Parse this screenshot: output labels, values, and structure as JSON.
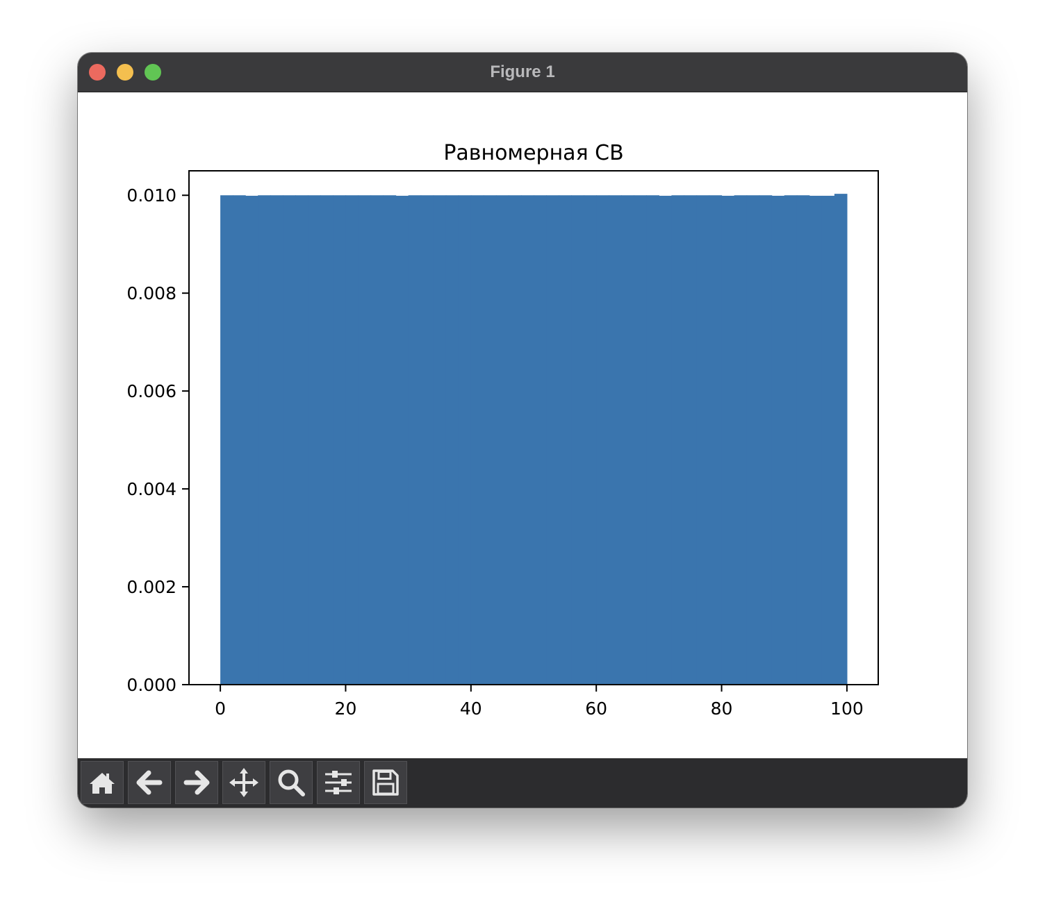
{
  "window": {
    "title": "Figure 1"
  },
  "toolbar": {
    "buttons": [
      {
        "icon": "home-icon",
        "name": "home-button"
      },
      {
        "icon": "back-arrow-icon",
        "name": "back-button"
      },
      {
        "icon": "forward-arrow-icon",
        "name": "forward-button"
      },
      {
        "icon": "move-icon",
        "name": "pan-button"
      },
      {
        "icon": "magnifier-icon",
        "name": "zoom-button"
      },
      {
        "icon": "sliders-icon",
        "name": "configure-subplots-button"
      },
      {
        "icon": "floppy-disk-icon",
        "name": "save-button"
      }
    ]
  },
  "chart_data": {
    "type": "bar",
    "title": "Равномерная СВ",
    "xlabel": "",
    "ylabel": "",
    "xlim": [
      -5,
      105
    ],
    "ylim": [
      0,
      0.0105
    ],
    "xticks": [
      0,
      20,
      40,
      60,
      80,
      100
    ],
    "xtick_labels": [
      "0",
      "20",
      "40",
      "60",
      "80",
      "100"
    ],
    "yticks": [
      0,
      0.002,
      0.004,
      0.006,
      0.008,
      0.01
    ],
    "ytick_labels": [
      "0.000",
      "0.002",
      "0.004",
      "0.006",
      "0.008",
      "0.010"
    ],
    "bin_edges": [
      0,
      100
    ],
    "bins": 50,
    "bin_width": 2,
    "values": [
      0.01,
      0.01,
      0.00999,
      0.01,
      0.01,
      0.01,
      0.01,
      0.01,
      0.01,
      0.01,
      0.01,
      0.01,
      0.01,
      0.01,
      0.00999,
      0.01,
      0.01,
      0.01,
      0.01,
      0.01,
      0.01,
      0.01,
      0.01,
      0.01,
      0.01,
      0.01,
      0.01,
      0.01,
      0.01,
      0.01,
      0.01,
      0.01,
      0.01,
      0.01,
      0.01,
      0.00999,
      0.01,
      0.01,
      0.01,
      0.01,
      0.00999,
      0.01,
      0.01,
      0.01,
      0.00999,
      0.01,
      0.01,
      0.00999,
      0.00999,
      0.01003
    ],
    "color": "#3a75ae",
    "grid": false
  }
}
